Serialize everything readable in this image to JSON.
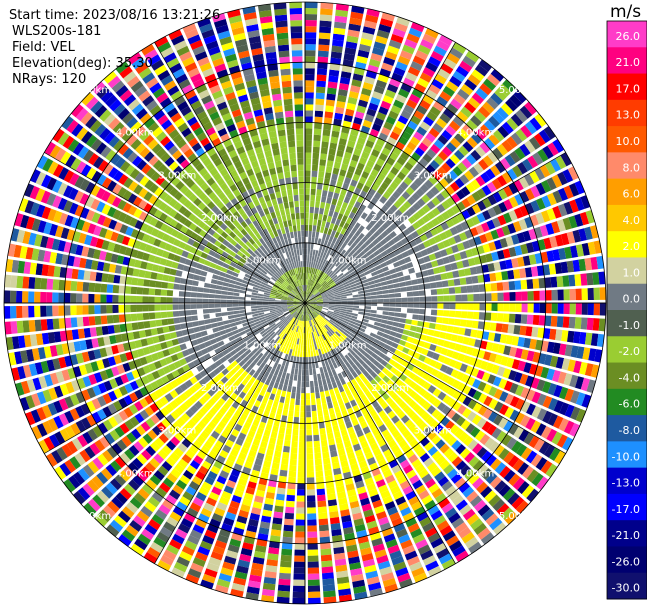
{
  "header": {
    "start_time": "Start time: 2023/08/16 13:21:26",
    "instrument": "WLS200s-181",
    "field": "Field: VEL",
    "elevation": "Elevation(deg): 35.30",
    "nrays": "NRays: 120"
  },
  "colorbar": {
    "unit": "m/s",
    "ticks": [
      "26.0",
      "21.0",
      "17.0",
      "13.0",
      "10.0",
      "8.0",
      "6.0",
      "4.0",
      "2.0",
      "1.0",
      "0.0",
      "-1.0",
      "-2.0",
      "-4.0",
      "-6.0",
      "-8.0",
      "-10.0",
      "-13.0",
      "-17.0",
      "-21.0",
      "-26.0",
      "-30.0"
    ],
    "colors": [
      "#ff3cc8",
      "#ff0080",
      "#ff0000",
      "#ff3c00",
      "#ff5a00",
      "#ff8a6a",
      "#ff9e00",
      "#ffc800",
      "#ffff00",
      "#d2d2a0",
      "#707a84",
      "#506050",
      "#9acd32",
      "#6b8e23",
      "#228b22",
      "#1e5aa0",
      "#1e90ff",
      "#0000cd",
      "#0000ff",
      "#00008b",
      "#000070",
      "#10106e"
    ]
  },
  "chart_data": {
    "type": "heatmap",
    "title": "",
    "field": "VEL",
    "units": "m/s",
    "projection": "polar (PPI)",
    "n_rays": 120,
    "elevation_deg": 35.3,
    "range_rings_km": [
      1.0,
      2.0,
      3.0,
      4.0,
      5.0
    ],
    "range_ring_labels": [
      "1.00km",
      "2.00km",
      "3.00km",
      "4.00km",
      "5.00km"
    ],
    "max_range_km": 5.0,
    "approx_velocity_pattern": [
      {
        "range_km": [
          0.0,
          0.4
        ],
        "description": "mixed",
        "typical_value": 0.0
      },
      {
        "range_km": [
          0.4,
          1.0
        ],
        "sector_deg": [
          60,
          300
        ],
        "typical_value": 0.0
      },
      {
        "range_km": [
          0.4,
          1.0
        ],
        "sector_deg": [
          150,
          210
        ],
        "typical_value": 2.0
      },
      {
        "range_km": [
          1.0,
          2.2
        ],
        "sector_deg": [
          30,
          330
        ],
        "typical_value": 0.0
      },
      {
        "range_km": [
          1.5,
          3.0
        ],
        "sector_deg": [
          270,
          360
        ],
        "typical_value": -2.0
      },
      {
        "range_km": [
          1.5,
          3.5
        ],
        "sector_deg": [
          90,
          230
        ],
        "typical_value": 2.0
      },
      {
        "range_km": [
          3.0,
          5.0
        ],
        "description": "noise, all values",
        "typical_value": null
      }
    ]
  }
}
